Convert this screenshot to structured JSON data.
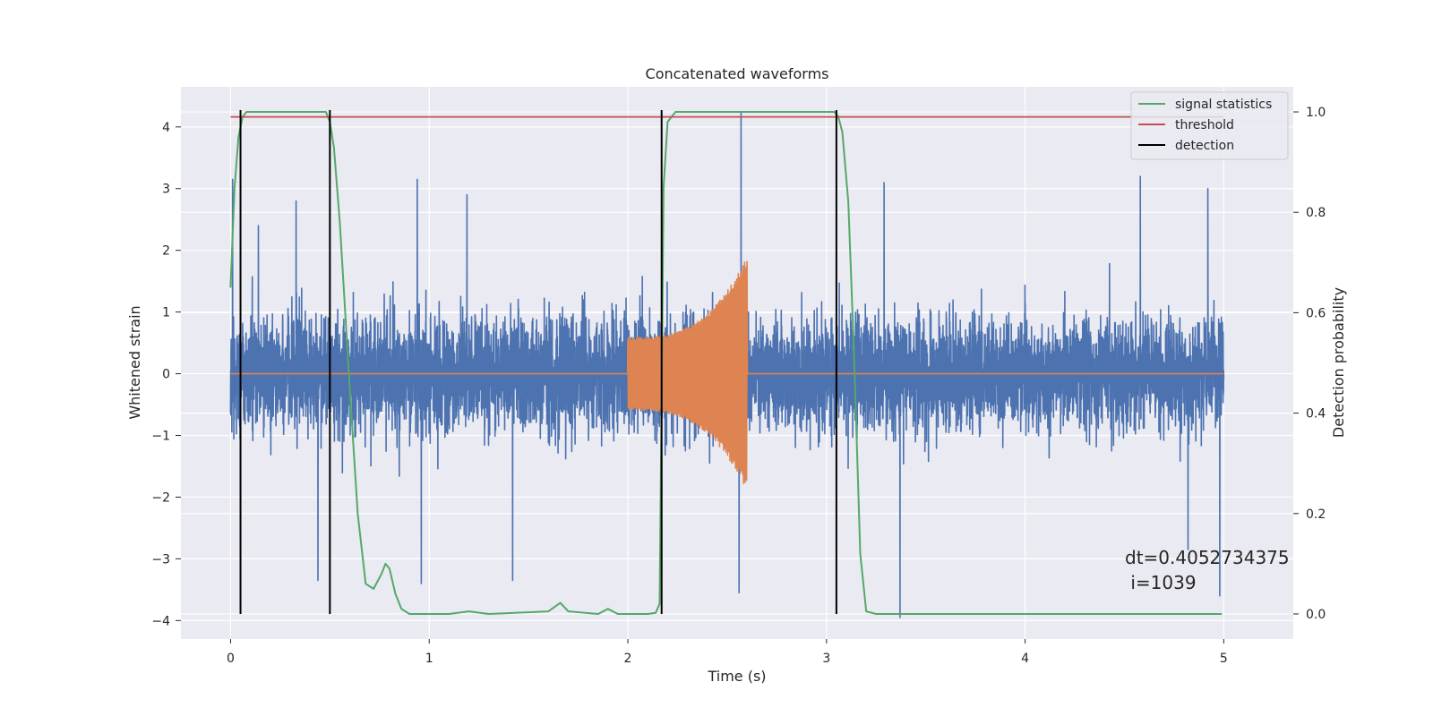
{
  "chart_data": {
    "type": "line",
    "title": "Concatenated waveforms",
    "xlabel": "Time (s)",
    "ylabel": "Whitened strain",
    "y2label": "Detection probability",
    "xlim": [
      -0.25,
      5.35
    ],
    "ylim": [
      -4.3,
      4.65
    ],
    "y2lim": [
      -0.05,
      1.05
    ],
    "x_ticks": [
      0,
      1,
      2,
      3,
      4,
      5
    ],
    "y_ticks": [
      -4,
      -3,
      -2,
      -1,
      0,
      1,
      2,
      3,
      4
    ],
    "y2_ticks": [
      0.0,
      0.2,
      0.4,
      0.6,
      0.8,
      1.0
    ],
    "y2_tick_labels": [
      "0.0",
      "0.2",
      "0.4",
      "0.6",
      "0.8",
      "1.0"
    ],
    "grid": true,
    "legend_position": "top-right",
    "series": [
      {
        "name": "",
        "kind": "whitened-noise-strain",
        "color": "#4c72b0",
        "axis": "left",
        "x_range": [
          0,
          5
        ],
        "band_sigma": 0.6,
        "extremes": [
          {
            "x": 0.01,
            "y": 3.15
          },
          {
            "x": 0.14,
            "y": 2.4
          },
          {
            "x": 0.33,
            "y": 2.8
          },
          {
            "x": 0.5,
            "y": 2.95
          },
          {
            "x": 0.94,
            "y": 3.15
          },
          {
            "x": 1.19,
            "y": 2.9
          },
          {
            "x": 2.57,
            "y": 4.25
          },
          {
            "x": 3.29,
            "y": 3.1
          },
          {
            "x": 4.58,
            "y": 3.2
          },
          {
            "x": 4.92,
            "y": 3.0
          },
          {
            "x": 0.44,
            "y": -3.35
          },
          {
            "x": 0.96,
            "y": -3.4
          },
          {
            "x": 1.42,
            "y": -3.35
          },
          {
            "x": 2.56,
            "y": -3.55
          },
          {
            "x": 3.37,
            "y": -3.95
          },
          {
            "x": 4.82,
            "y": -2.85
          },
          {
            "x": 4.98,
            "y": -3.6
          }
        ]
      },
      {
        "name": "",
        "kind": "injected-chirp",
        "color": "#dd8452",
        "axis": "left",
        "baseline": 0,
        "chirp_start": 2.0,
        "chirp_end": 2.6,
        "amplitude_start": 0.6,
        "amplitude_end": 1.9
      },
      {
        "name": "signal statistics",
        "color": "#55a868",
        "axis": "right",
        "x": [
          0.0,
          0.02,
          0.04,
          0.06,
          0.08,
          0.1,
          0.3,
          0.48,
          0.5,
          0.52,
          0.55,
          0.6,
          0.64,
          0.68,
          0.72,
          0.76,
          0.78,
          0.8,
          0.83,
          0.86,
          0.9,
          1.1,
          1.2,
          1.3,
          1.6,
          1.66,
          1.7,
          1.85,
          1.9,
          1.95,
          2.1,
          2.14,
          2.16,
          2.18,
          2.2,
          2.24,
          3.0,
          3.04,
          3.06,
          3.08,
          3.11,
          3.14,
          3.17,
          3.2,
          3.25,
          4.99
        ],
        "y": [
          0.65,
          0.85,
          0.95,
          0.99,
          1.0,
          1.0,
          1.0,
          1.0,
          0.98,
          0.93,
          0.78,
          0.45,
          0.2,
          0.06,
          0.05,
          0.08,
          0.1,
          0.09,
          0.04,
          0.01,
          0.0,
          0.0,
          0.005,
          0.0,
          0.005,
          0.022,
          0.005,
          0.0,
          0.01,
          0.0,
          0.0,
          0.002,
          0.02,
          0.85,
          0.98,
          1.0,
          1.0,
          1.0,
          0.99,
          0.96,
          0.82,
          0.5,
          0.12,
          0.005,
          0.0,
          0.0
        ]
      },
      {
        "name": "threshold",
        "color": "#c44e52",
        "axis": "right",
        "x": [
          0,
          5
        ],
        "y": [
          0.99,
          0.99
        ]
      },
      {
        "name": "detection",
        "color": "#000000",
        "axis": "right",
        "vlines": [
          0.05,
          0.5,
          2.17,
          3.05
        ],
        "y": [
          0.0,
          1.0
        ]
      }
    ],
    "annotation": {
      "line1": "dt=0.4052734375",
      "line2": " i=1039"
    }
  }
}
